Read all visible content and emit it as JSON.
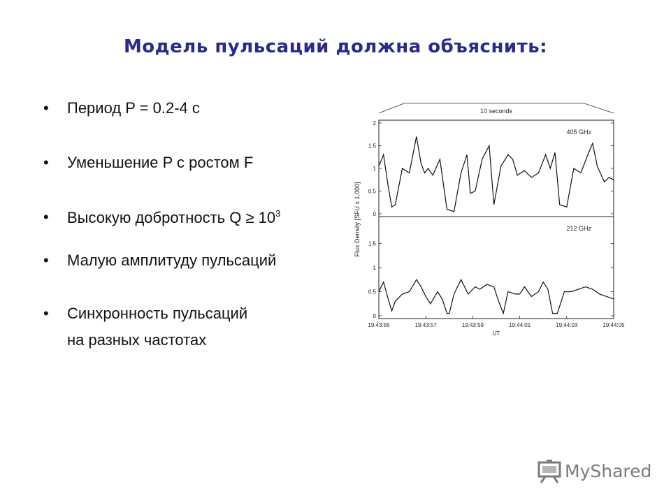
{
  "slide": {
    "title": "Модель пульсаций должна объяснить:",
    "bullet_symbol": "•",
    "bullets": [
      {
        "text": "Период  P = 0.2-4 с"
      },
      {
        "text": "Уменьшение P с ростом F"
      },
      {
        "text": "Высокую добротность Q ≥ 10",
        "sup": "3"
      },
      {
        "text": "Малую амплитуду пульсаций"
      },
      {
        "text": "Синхронность пульсаций",
        "text2": "на разных частотах"
      }
    ]
  },
  "chart_data": {
    "type": "line",
    "span_label": "10 seconds",
    "ylabel": "Flux Density [SFU x 1,000]",
    "xlabel": "UT",
    "x_tick_labels": [
      "19:43:55",
      "19:43:57",
      "19:43:59",
      "19:44:01",
      "19:44:03",
      "19:44:05"
    ],
    "y_tick_labels": [
      "0",
      "0.5",
      "1",
      "1.5",
      "2"
    ],
    "ylim": [
      0,
      2
    ],
    "panels": [
      {
        "label": "405 GHz",
        "x": [
          0,
          0.2,
          0.4,
          0.55,
          0.7,
          1.0,
          1.3,
          1.6,
          1.8,
          1.95,
          2.1,
          2.3,
          2.6,
          2.9,
          3.2,
          3.5,
          3.75,
          3.9,
          4.1,
          4.4,
          4.7,
          4.9,
          5.2,
          5.5,
          5.7,
          5.9,
          6.2,
          6.5,
          6.8,
          7.1,
          7.3,
          7.5,
          7.7,
          8.0,
          8.3,
          8.6,
          8.9,
          9.1,
          9.3,
          9.6,
          9.8,
          10.0
        ],
        "values": [
          1.05,
          1.3,
          0.6,
          0.15,
          0.2,
          1.0,
          0.9,
          1.7,
          1.1,
          0.9,
          1.0,
          0.85,
          1.2,
          0.1,
          0.05,
          0.9,
          1.3,
          0.45,
          0.5,
          1.2,
          1.5,
          0.2,
          1.05,
          1.3,
          1.2,
          0.85,
          0.95,
          0.8,
          0.9,
          1.3,
          1.0,
          1.35,
          0.2,
          0.15,
          1.0,
          0.9,
          1.3,
          1.55,
          1.05,
          0.7,
          0.8,
          0.75
        ]
      },
      {
        "label": "212 GHz",
        "x": [
          0,
          0.2,
          0.4,
          0.55,
          0.7,
          1.0,
          1.3,
          1.6,
          1.8,
          2.0,
          2.2,
          2.5,
          2.7,
          2.9,
          3.0,
          3.2,
          3.5,
          3.8,
          4.1,
          4.3,
          4.6,
          4.9,
          5.1,
          5.3,
          5.5,
          5.8,
          6.0,
          6.2,
          6.5,
          6.8,
          7.0,
          7.2,
          7.4,
          7.6,
          7.9,
          8.2,
          8.5,
          8.8,
          9.1,
          9.4,
          9.7,
          10.0
        ],
        "values": [
          0.5,
          0.7,
          0.35,
          0.1,
          0.3,
          0.45,
          0.5,
          0.75,
          0.6,
          0.4,
          0.25,
          0.5,
          0.35,
          0.05,
          0.05,
          0.45,
          0.75,
          0.45,
          0.6,
          0.55,
          0.65,
          0.6,
          0.3,
          0.05,
          0.5,
          0.45,
          0.45,
          0.6,
          0.4,
          0.5,
          0.7,
          0.55,
          0.05,
          0.05,
          0.5,
          0.5,
          0.55,
          0.6,
          0.55,
          0.45,
          0.4,
          0.35
        ]
      }
    ]
  },
  "logo": {
    "text": "MyShared",
    "icon": "presentation-board-icon"
  }
}
